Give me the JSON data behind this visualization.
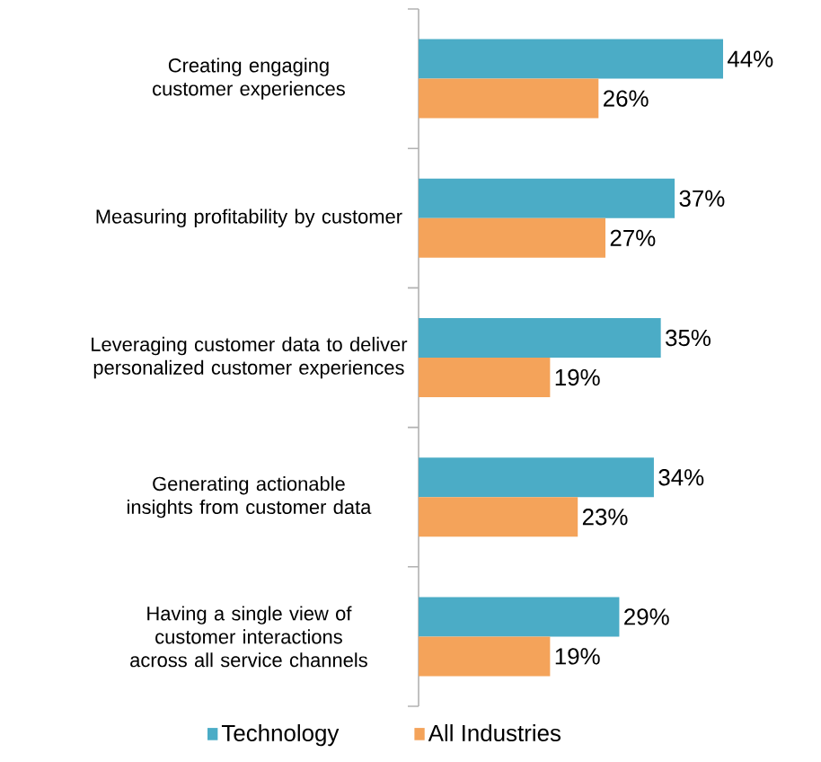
{
  "chart_data": {
    "type": "bar",
    "orientation": "horizontal",
    "categories": [
      "Creating engaging customer experiences",
      "Measuring  profitability by customer",
      "Leveraging customer data to deliver personalized customer experiences",
      "Generating actionable insights from customer data",
      "Having a single view of customer interactions across all service channels"
    ],
    "series": [
      {
        "name": "Technology",
        "color": "#4bacc6",
        "values": [
          44,
          37,
          35,
          34,
          29
        ],
        "value_labels": [
          "44%",
          "37%",
          "35%",
          "34%",
          "29%"
        ]
      },
      {
        "name": "All Industries",
        "color": "#f4a35a",
        "values": [
          26,
          27,
          19,
          23,
          19
        ],
        "value_labels": [
          "26%",
          "27%",
          "19%",
          "23%",
          "19%"
        ]
      }
    ],
    "legend": "bottom"
  }
}
